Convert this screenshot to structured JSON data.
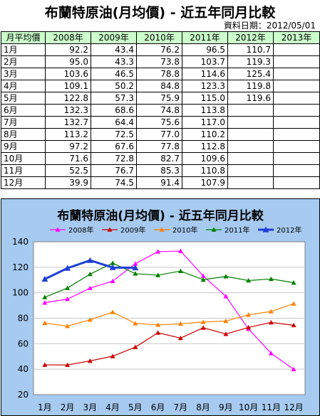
{
  "page": {
    "title": "布蘭特原油(月均價) - 近五年同月比較",
    "date_note": "資料日期：2012/05/01"
  },
  "table": {
    "headers": [
      "月平均價",
      "2008年",
      "2009年",
      "2010年",
      "2011年",
      "2012年",
      "2013年"
    ],
    "rows": [
      [
        "1月",
        "92.2",
        "43.4",
        "76.2",
        "96.5",
        "110.7",
        ""
      ],
      [
        "2月",
        "95.0",
        "43.3",
        "73.8",
        "103.7",
        "119.3",
        ""
      ],
      [
        "3月",
        "103.6",
        "46.5",
        "78.8",
        "114.6",
        "125.4",
        ""
      ],
      [
        "4月",
        "109.1",
        "50.2",
        "84.8",
        "123.3",
        "119.8",
        ""
      ],
      [
        "5月",
        "122.8",
        "57.3",
        "75.9",
        "115.0",
        "119.6",
        ""
      ],
      [
        "6月",
        "132.3",
        "68.6",
        "74.8",
        "113.8",
        "",
        ""
      ],
      [
        "7月",
        "132.7",
        "64.4",
        "75.6",
        "117.0",
        "",
        ""
      ],
      [
        "8月",
        "113.2",
        "72.5",
        "77.0",
        "110.2",
        "",
        ""
      ],
      [
        "9月",
        "97.2",
        "67.6",
        "77.8",
        "112.8",
        "",
        ""
      ],
      [
        "10月",
        "71.6",
        "72.8",
        "82.7",
        "109.6",
        "",
        ""
      ],
      [
        "11月",
        "52.5",
        "76.7",
        "85.3",
        "110.8",
        "",
        ""
      ],
      [
        "12月",
        "39.9",
        "74.5",
        "91.4",
        "107.9",
        "",
        ""
      ]
    ]
  },
  "chart_data": {
    "type": "line",
    "title": "布蘭特原油(月均價) - 近五年同月比較",
    "categories": [
      "1月",
      "2月",
      "3月",
      "4月",
      "5月",
      "6月",
      "7月",
      "8月",
      "9月",
      "10月",
      "11月",
      "12月"
    ],
    "ylim": [
      20,
      140
    ],
    "yticks": [
      20,
      40,
      60,
      80,
      100,
      120,
      140
    ],
    "grid": true,
    "legend": "top",
    "series": [
      {
        "name": "2008年",
        "color": "#ff00ff",
        "marker": "triangle",
        "values": [
          92.2,
          95.0,
          103.6,
          109.1,
          122.8,
          132.3,
          132.7,
          113.2,
          97.2,
          71.6,
          52.5,
          39.9
        ]
      },
      {
        "name": "2009年",
        "color": "#cc0000",
        "marker": "triangle",
        "values": [
          43.4,
          43.3,
          46.5,
          50.2,
          57.3,
          68.6,
          64.4,
          72.5,
          67.6,
          72.8,
          76.7,
          74.5
        ]
      },
      {
        "name": "2010年",
        "color": "#ff8000",
        "marker": "triangle",
        "values": [
          76.2,
          73.8,
          78.8,
          84.8,
          75.9,
          74.8,
          75.6,
          77.0,
          77.8,
          82.7,
          85.3,
          91.4
        ]
      },
      {
        "name": "2011年",
        "color": "#008000",
        "marker": "triangle",
        "values": [
          96.5,
          103.7,
          114.6,
          123.3,
          115.0,
          113.8,
          117.0,
          110.2,
          112.8,
          109.6,
          110.8,
          107.9
        ]
      },
      {
        "name": "2012年",
        "color": "#1f3fd6",
        "marker": "triangle",
        "bold": true,
        "values": [
          110.7,
          119.3,
          125.4,
          119.8,
          119.6,
          null,
          null,
          null,
          null,
          null,
          null,
          null
        ]
      }
    ]
  }
}
